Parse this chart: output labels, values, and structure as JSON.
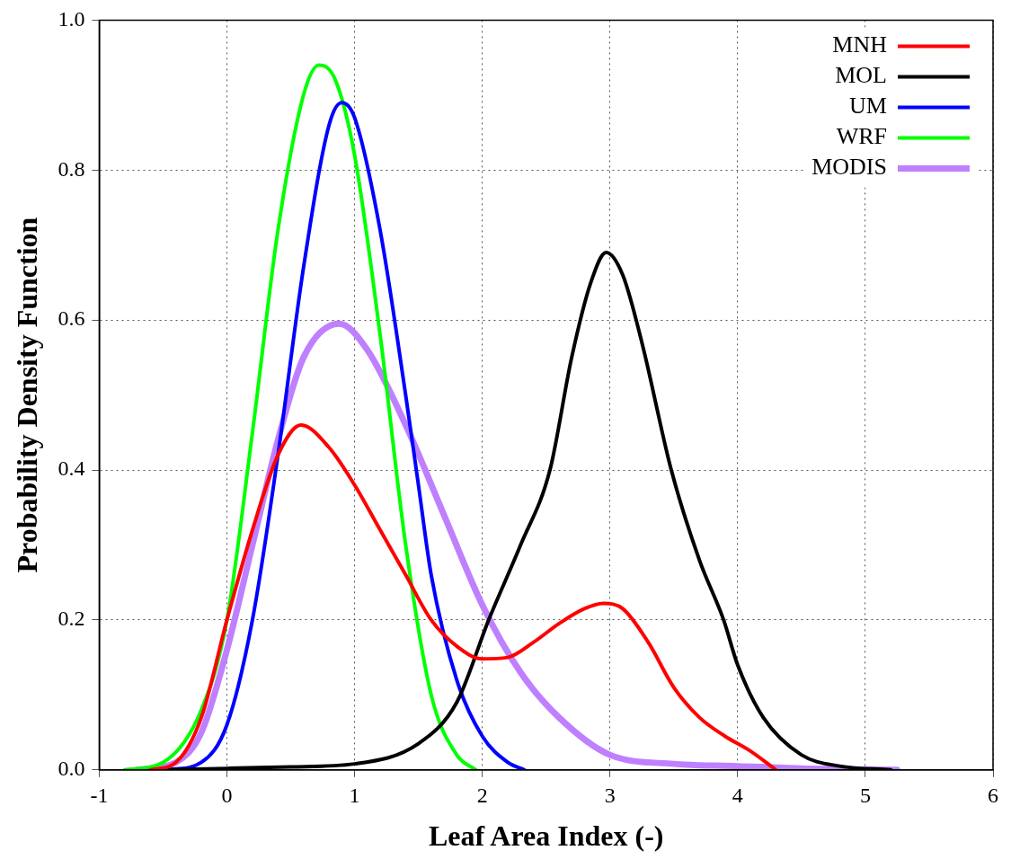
{
  "chart_data": {
    "type": "line",
    "xlabel": "Leaf Area Index (-)",
    "ylabel": "Probability Density Function",
    "xlim": [
      -1,
      6
    ],
    "xticks": [
      -1,
      0,
      1,
      2,
      3,
      4,
      5,
      6
    ],
    "ylim": [
      0,
      1
    ],
    "yticks": [
      {
        "value": 0,
        "label": "0.0"
      },
      {
        "value": 0.2,
        "label": "0.2"
      },
      {
        "value": 0.4,
        "label": "0.4"
      },
      {
        "value": 0.6,
        "label": "0.6"
      },
      {
        "value": 0.8,
        "label": "0.8"
      },
      {
        "value": 1,
        "label": "1.0"
      }
    ],
    "grid": true,
    "legend": "top right",
    "marker": "none",
    "line_style": "solid",
    "series": [
      {
        "name": "MNH",
        "color": "#ff0000",
        "x": [
          -0.6,
          -0.4,
          -0.2,
          0,
          0.2,
          0.4,
          0.58,
          0.8,
          1.0,
          1.2,
          1.4,
          1.6,
          1.8,
          2.0,
          2.2,
          2.4,
          2.6,
          2.8,
          2.95,
          3.1,
          3.3,
          3.5,
          3.7,
          3.9,
          4.1,
          4.3
        ],
        "values": [
          0,
          0.01,
          0.07,
          0.2,
          0.32,
          0.42,
          0.46,
          0.43,
          0.38,
          0.32,
          0.26,
          0.2,
          0.165,
          0.148,
          0.15,
          0.17,
          0.195,
          0.215,
          0.222,
          0.215,
          0.17,
          0.11,
          0.07,
          0.045,
          0.025,
          0
        ]
      },
      {
        "name": "MOL",
        "color": "#000000",
        "x": [
          -0.5,
          0,
          0.5,
          1.0,
          1.5,
          1.8,
          2.05,
          2.3,
          2.53,
          2.7,
          2.85,
          2.97,
          3.1,
          3.25,
          3.48,
          3.7,
          3.89,
          4.0,
          4.2,
          4.5,
          4.8,
          5.2
        ],
        "values": [
          0,
          0.002,
          0.004,
          0.008,
          0.035,
          0.09,
          0.2,
          0.3,
          0.4,
          0.55,
          0.65,
          0.69,
          0.66,
          0.57,
          0.4,
          0.28,
          0.2,
          0.14,
          0.07,
          0.02,
          0.005,
          0
        ]
      },
      {
        "name": "UM",
        "color": "#0000ff",
        "x": [
          -0.45,
          -0.2,
          0,
          0.2,
          0.4,
          0.6,
          0.8,
          0.9,
          1.0,
          1.2,
          1.4,
          1.5,
          1.6,
          1.8,
          2.0,
          2.2,
          2.33
        ],
        "values": [
          0,
          0.01,
          0.06,
          0.2,
          0.42,
          0.67,
          0.86,
          0.89,
          0.87,
          0.72,
          0.5,
          0.38,
          0.26,
          0.12,
          0.045,
          0.01,
          0
        ]
      },
      {
        "name": "WRF",
        "color": "#00ff00",
        "x": [
          -0.8,
          -0.5,
          -0.2,
          0,
          0.2,
          0.4,
          0.6,
          0.72,
          0.85,
          1.0,
          1.2,
          1.4,
          1.6,
          1.8,
          1.95
        ],
        "values": [
          0,
          0.01,
          0.08,
          0.2,
          0.45,
          0.72,
          0.9,
          0.94,
          0.92,
          0.82,
          0.58,
          0.3,
          0.1,
          0.02,
          0
        ]
      },
      {
        "name": "MODIS",
        "color": "#bf80ff",
        "x": [
          -0.7,
          -0.4,
          -0.2,
          0,
          0.2,
          0.4,
          0.6,
          0.88,
          1.1,
          1.4,
          1.7,
          2.0,
          2.3,
          2.6,
          3.0,
          3.5,
          4.0,
          4.5,
          5.25
        ],
        "values": [
          0,
          0.01,
          0.05,
          0.16,
          0.3,
          0.44,
          0.55,
          0.595,
          0.56,
          0.46,
          0.34,
          0.22,
          0.13,
          0.07,
          0.02,
          0.008,
          0.005,
          0.002,
          0
        ]
      }
    ]
  }
}
